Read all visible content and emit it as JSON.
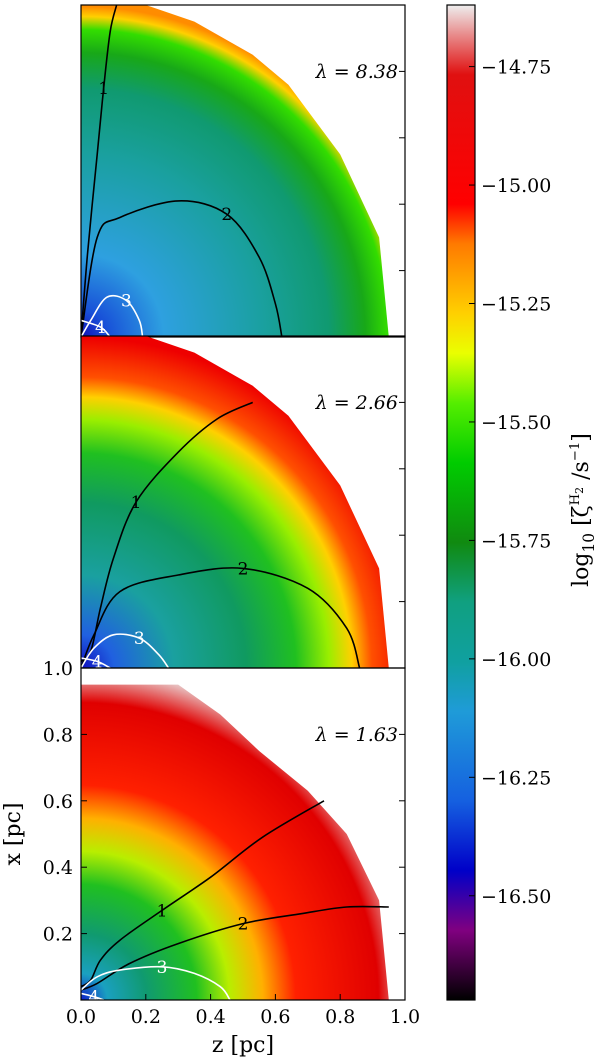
{
  "chart_data": {
    "type": "heatmap",
    "xlabel": "z [pc]",
    "ylabel": "x [pc]",
    "xlim": [
      0.0,
      1.0
    ],
    "ylim": [
      0.0,
      1.0
    ],
    "x_ticks": [
      "0.0",
      "0.2",
      "0.4",
      "0.6",
      "0.8",
      "1.0"
    ],
    "y_ticks": [
      "0.2",
      "0.4",
      "0.6",
      "0.8",
      "1.0"
    ],
    "colorbar": {
      "label": "log10 [ζH2 /s−1]",
      "label_main": "log",
      "label_sub": "10",
      "label_rest": " [ζ",
      "label_sup": "H",
      "label_sup_sub": "2",
      "label_unit": " /s",
      "label_unit_sup": "−1",
      "label_close": "]",
      "range": [
        -16.72,
        -14.62
      ],
      "ticks": [
        "−14.75",
        "−15.00",
        "−15.25",
        "−15.50",
        "−15.75",
        "−16.00",
        "−16.25",
        "−16.50"
      ],
      "tick_values": [
        -14.75,
        -15.0,
        -15.25,
        -15.5,
        -15.75,
        -16.0,
        -16.25,
        -16.5
      ]
    },
    "panels": [
      {
        "lambda_label": "λ = 8.38",
        "boundary_z": [
          0.0,
          0.08,
          0.2,
          0.35,
          0.53,
          0.64,
          0.8,
          0.92,
          0.95
        ],
        "boundary_x": [
          1.0,
          1.0,
          1.0,
          0.95,
          0.85,
          0.76,
          0.55,
          0.3,
          0.0
        ],
        "contours": [
          {
            "label": "1",
            "color": "black",
            "z": [
              0.0,
              0.02,
              0.05,
              0.07,
              0.09,
              0.11
            ],
            "x": [
              0.0,
              0.25,
              0.55,
              0.75,
              0.92,
              1.0
            ]
          },
          {
            "label": "2",
            "color": "black",
            "z": [
              0.0,
              0.05,
              0.12,
              0.3,
              0.45,
              0.55,
              0.6,
              0.62
            ],
            "x": [
              0.0,
              0.3,
              0.36,
              0.41,
              0.37,
              0.24,
              0.1,
              0.0
            ]
          },
          {
            "label": "3",
            "color": "white",
            "z": [
              0.0,
              0.03,
              0.08,
              0.14,
              0.18,
              0.19
            ],
            "x": [
              0.0,
              0.05,
              0.12,
              0.11,
              0.05,
              0.0
            ]
          },
          {
            "label": "4",
            "color": "white",
            "z": [
              0.0,
              0.06,
              0.09
            ],
            "x": [
              0.05,
              0.03,
              0.0
            ]
          }
        ]
      },
      {
        "lambda_label": "λ = 2.66",
        "boundary_z": [
          0.0,
          0.08,
          0.2,
          0.35,
          0.53,
          0.64,
          0.8,
          0.92,
          0.95
        ],
        "boundary_x": [
          1.0,
          1.0,
          1.0,
          0.95,
          0.85,
          0.76,
          0.55,
          0.3,
          0.0
        ],
        "contours": [
          {
            "label": "1",
            "color": "black",
            "z": [
              0.0,
              0.03,
              0.06,
              0.1,
              0.17,
              0.3,
              0.42,
              0.53
            ],
            "x": [
              0.02,
              0.05,
              0.18,
              0.33,
              0.5,
              0.65,
              0.75,
              0.8
            ]
          },
          {
            "label": "2",
            "color": "black",
            "z": [
              0.0,
              0.04,
              0.12,
              0.3,
              0.5,
              0.7,
              0.82,
              0.86
            ],
            "x": [
              0.0,
              0.1,
              0.23,
              0.28,
              0.3,
              0.24,
              0.12,
              0.0
            ]
          },
          {
            "label": "3",
            "color": "white",
            "z": [
              0.0,
              0.04,
              0.1,
              0.18,
              0.24,
              0.27
            ],
            "x": [
              0.0,
              0.06,
              0.1,
              0.09,
              0.04,
              0.0
            ]
          },
          {
            "label": "4",
            "color": "white",
            "z": [
              0.0,
              0.05,
              0.09
            ],
            "x": [
              0.03,
              0.02,
              0.0
            ]
          }
        ]
      },
      {
        "lambda_label": "λ = 1.63",
        "boundary_z": [
          0.0,
          0.08,
          0.2,
          0.3,
          0.43,
          0.55,
          0.7,
          0.82,
          0.92,
          0.95
        ],
        "boundary_x": [
          0.95,
          0.95,
          0.95,
          0.95,
          0.86,
          0.75,
          0.63,
          0.5,
          0.3,
          0.0
        ],
        "contours": [
          {
            "label": "1",
            "color": "black",
            "z": [
              0.0,
              0.03,
              0.06,
              0.12,
              0.25,
              0.4,
              0.56,
              0.75
            ],
            "x": [
              0.04,
              0.06,
              0.12,
              0.18,
              0.27,
              0.37,
              0.49,
              0.6
            ]
          },
          {
            "label": "2",
            "color": "black",
            "z": [
              0.0,
              0.05,
              0.15,
              0.3,
              0.5,
              0.68,
              0.82,
              0.95
            ],
            "x": [
              0.03,
              0.05,
              0.11,
              0.17,
              0.23,
              0.26,
              0.28,
              0.28
            ]
          },
          {
            "label": "3",
            "color": "white",
            "z": [
              0.0,
              0.05,
              0.12,
              0.25,
              0.35,
              0.43,
              0.46
            ],
            "x": [
              0.03,
              0.07,
              0.09,
              0.1,
              0.08,
              0.04,
              0.0
            ]
          },
          {
            "label": "4",
            "color": "white",
            "z": [
              0.0,
              0.04,
              0.07
            ],
            "x": [
              0.02,
              0.01,
              0.0
            ]
          }
        ]
      }
    ]
  }
}
